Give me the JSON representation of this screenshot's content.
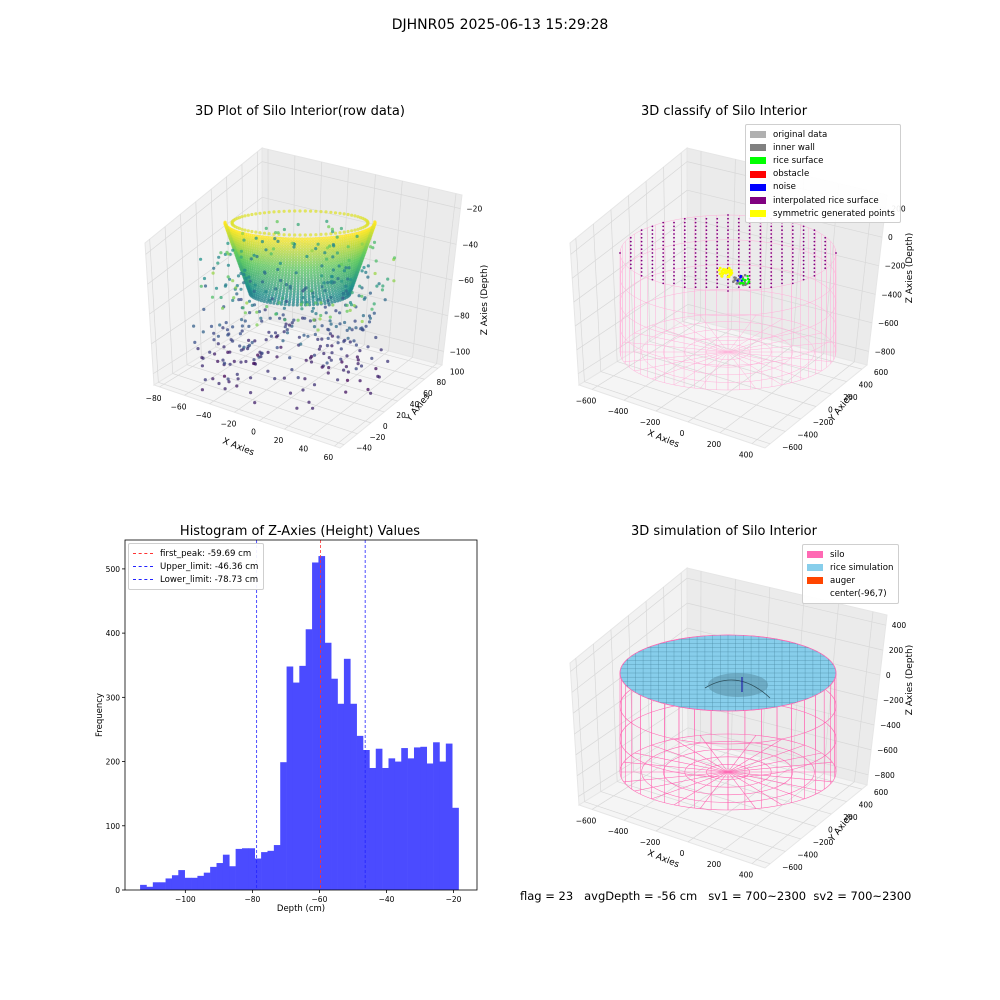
{
  "figure": {
    "suptitle": "DJHNR05 2025-06-13 15:29:28",
    "footer": "flag = 23   avgDepth = -56 cm   sv1 = 700~2300  sv2 = 700~2300"
  },
  "colors": {
    "grid_pane": "#f2f2f2",
    "hist_bar": "#4b4bff",
    "peak_line": "#ff3333",
    "limit_line": "#2222ff",
    "silo": "#ff69b4",
    "rice": "#87ceeb",
    "auger": "#ff4500",
    "viridis": [
      "#440154",
      "#3b528b",
      "#21918c",
      "#5ec962",
      "#fde725"
    ]
  },
  "chart_data": [
    {
      "type": "scatter",
      "title": "3D Plot of Silo Interior(row data)",
      "projection": "3d",
      "xlabel": "X Axies",
      "ylabel": "Y Axies",
      "zlabel": "Z Axies (Depth)",
      "x_ticks": [
        "−80",
        "−60",
        "−40",
        "−20",
        "0",
        "20",
        "40",
        "60"
      ],
      "y_ticks": [
        "−40",
        "−20",
        "0",
        "20",
        "40",
        "60",
        "80",
        "100"
      ],
      "z_ticks": [
        "−100",
        "−80",
        "−60",
        "−40",
        "−20"
      ],
      "colormap": "viridis"
    },
    {
      "type": "scatter",
      "title": "3D classify of Silo Interior",
      "projection": "3d",
      "xlabel": "X Axies",
      "ylabel": "Y Axies",
      "zlabel": "Z Axies (Depth)",
      "x_ticks": [
        "−600",
        "−400",
        "−200",
        "0",
        "200",
        "400"
      ],
      "y_ticks": [
        "−600",
        "−400",
        "−200",
        "0",
        "200",
        "400",
        "600"
      ],
      "z_ticks": [
        "−800",
        "−600",
        "−400",
        "−200",
        "0",
        "200"
      ],
      "legend": [
        {
          "label": "original data",
          "color": "#b0b0b0"
        },
        {
          "label": "inner wall",
          "color": "#808080"
        },
        {
          "label": "rice surface",
          "color": "#00ff00"
        },
        {
          "label": "obstacle",
          "color": "#ff0000"
        },
        {
          "label": "noise",
          "color": "#0000ff"
        },
        {
          "label": "interpolated rice surface",
          "color": "#800080"
        },
        {
          "label": "symmetric generated points",
          "color": "#ffff00"
        }
      ]
    },
    {
      "type": "bar",
      "title": "Histogram of Z-Axies (Height) Values",
      "xlabel": "Depth (cm)",
      "ylabel": "Frequency",
      "xlim": [
        -118,
        -13
      ],
      "ylim": [
        0,
        545
      ],
      "x_ticks": [
        -100,
        -80,
        -60,
        -40,
        -20
      ],
      "x_tick_labels": [
        "−100",
        "−80",
        "−60",
        "−40",
        "−20"
      ],
      "y_ticks": [
        0,
        100,
        200,
        300,
        400,
        500
      ],
      "x_start": -113.5,
      "bin_width": 1.9,
      "values": [
        8,
        5,
        12,
        12,
        18,
        23,
        31,
        19,
        19,
        22,
        27,
        36,
        42,
        55,
        37,
        64,
        65,
        65,
        49,
        59,
        61,
        70,
        199,
        348,
        323,
        349,
        406,
        510,
        520,
        385,
        329,
        290,
        360,
        290,
        240,
        218,
        190,
        220,
        190,
        205,
        200,
        221,
        205,
        222,
        223,
        197,
        230,
        200,
        228,
        128
      ],
      "lines": [
        {
          "label": "first_peak: -59.69 cm",
          "x": -59.69,
          "color": "#ff3333"
        },
        {
          "label": "Upper_limit: -46.36 cm",
          "x": -46.36,
          "color": "#2222ff"
        },
        {
          "label": "Lower_limit: -78.73 cm",
          "x": -78.73,
          "color": "#2222ff"
        }
      ]
    },
    {
      "type": "area",
      "title": "3D simulation of Silo Interior",
      "projection": "3d",
      "xlabel": "X Axies",
      "ylabel": "Y Axies",
      "zlabel": "Z Axies (Depth)",
      "x_ticks": [
        "−600",
        "−400",
        "−200",
        "0",
        "200",
        "400"
      ],
      "y_ticks": [
        "−600",
        "−400",
        "−200",
        "0",
        "200",
        "400",
        "600"
      ],
      "z_ticks": [
        "−800",
        "−600",
        "−400",
        "−200",
        "0",
        "200",
        "400"
      ],
      "legend": [
        {
          "label": "silo",
          "color": "#ff69b4"
        },
        {
          "label": "rice simulation",
          "color": "#87ceeb"
        },
        {
          "label": "auger",
          "color": "#ff4500"
        },
        {
          "label": "center(-96,7)",
          "color": ""
        }
      ]
    }
  ]
}
